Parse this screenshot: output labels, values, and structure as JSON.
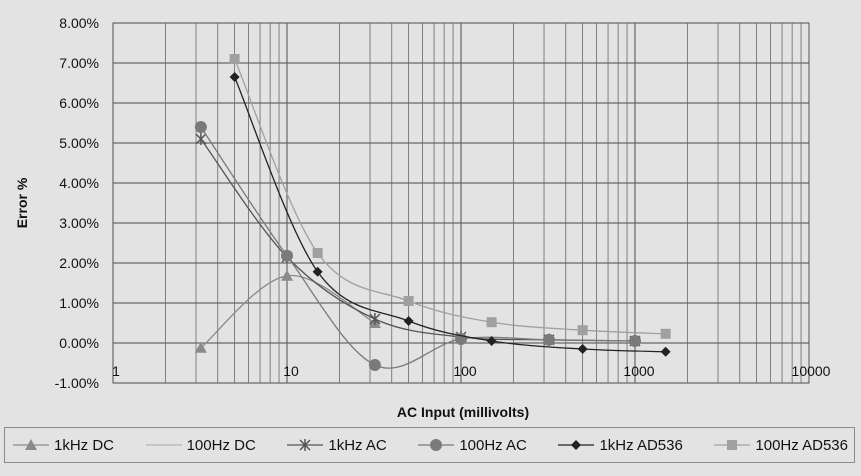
{
  "chart_data": {
    "type": "scatter",
    "title": "",
    "xlabel": "AC Input (millivolts)",
    "ylabel": "Error %",
    "xscale": "log",
    "xlim": [
      1,
      10000
    ],
    "ylim": [
      -0.01,
      0.08
    ],
    "x_tick_labels": [
      "1",
      "10",
      "100",
      "1000",
      "10000"
    ],
    "y_tick_labels": [
      "-1.00%",
      "0.00%",
      "1.00%",
      "2.00%",
      "3.00%",
      "4.00%",
      "5.00%",
      "6.00%",
      "7.00%",
      "8.00%"
    ],
    "grid": true,
    "legend_position": "bottom",
    "series": [
      {
        "name": "1kHz DC",
        "color": "#8a8a8a",
        "marker": "triangle",
        "x": [
          3.2,
          10,
          32
        ],
        "y": [
          -0.0012,
          0.0168,
          0.005
        ]
      },
      {
        "name": "100Hz DC",
        "color": "#b5b5b5",
        "marker": "none",
        "x": [],
        "y": []
      },
      {
        "name": "1kHz AC",
        "color": "#555555",
        "marker": "x",
        "x": [
          3.2,
          10,
          32,
          100,
          320,
          1000
        ],
        "y": [
          0.051,
          0.0215,
          0.006,
          0.0015,
          0.0008,
          0.0005
        ]
      },
      {
        "name": "100Hz AC",
        "color": "#7a7a7a",
        "marker": "circle",
        "x": [
          3.2,
          10,
          32,
          100,
          320,
          1000
        ],
        "y": [
          0.054,
          0.0218,
          -0.0055,
          0.001,
          0.0008,
          0.0005
        ]
      },
      {
        "name": "1kHz AD536",
        "color": "#222222",
        "marker": "diamond",
        "x": [
          5,
          15,
          50,
          150,
          500,
          1500
        ],
        "y": [
          0.0665,
          0.0178,
          0.0055,
          0.0005,
          -0.0015,
          -0.0022
        ]
      },
      {
        "name": "100Hz AD536",
        "color": "#a0a0a0",
        "marker": "square",
        "x": [
          5,
          15,
          50,
          150,
          500,
          1500
        ],
        "y": [
          0.071,
          0.0225,
          0.0105,
          0.0052,
          0.0032,
          0.0023
        ]
      }
    ]
  }
}
